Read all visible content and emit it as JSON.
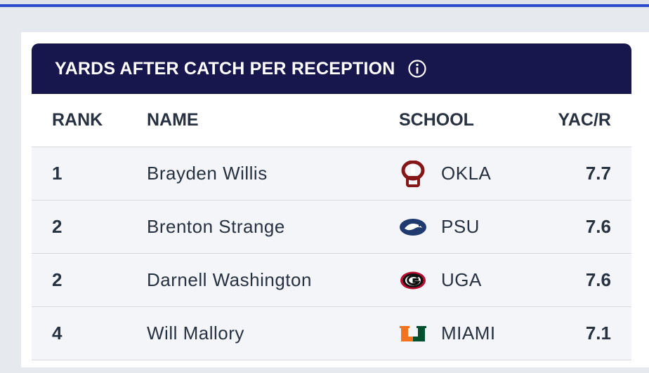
{
  "widget": {
    "title": "YARDS AFTER CATCH PER RECEPTION"
  },
  "columns": {
    "rank": "RANK",
    "name": "NAME",
    "school": "SCHOOL",
    "yac": "YAC/R"
  },
  "rows": [
    {
      "rank": "1",
      "name": "Brayden Willis",
      "school": "OKLA",
      "yac": "7.7",
      "logo": "oklahoma-logo"
    },
    {
      "rank": "2",
      "name": "Brenton Strange",
      "school": "PSU",
      "yac": "7.6",
      "logo": "penn-state-logo"
    },
    {
      "rank": "2",
      "name": "Darnell Washington",
      "school": "UGA",
      "yac": "7.6",
      "logo": "georgia-logo"
    },
    {
      "rank": "4",
      "name": "Will Mallory",
      "school": "MIAMI",
      "yac": "7.1",
      "logo": "miami-logo"
    }
  ],
  "colors": {
    "header_bg": "#17174e",
    "accent_bar": "#2a4bd0",
    "row_bg": "#f4f5f8",
    "text": "#273140"
  }
}
